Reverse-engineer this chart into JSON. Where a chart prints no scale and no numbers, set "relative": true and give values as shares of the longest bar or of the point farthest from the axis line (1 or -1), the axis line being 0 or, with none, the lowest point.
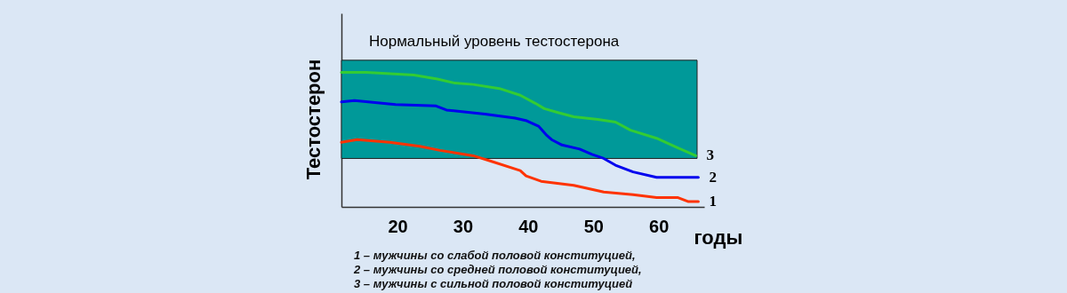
{
  "chart_data": {
    "type": "line",
    "xlabel": "годы",
    "ylabel": "Тестостерон",
    "relative": true,
    "xlim": [
      11.4,
      67
    ],
    "xticks": [
      20,
      30,
      40,
      50,
      60
    ],
    "tick_labels": "x",
    "bands": [
      {
        "axis": "y",
        "from": 0.36,
        "to": 1.09,
        "label": "Нормальный уровень тестостерона",
        "color": "#009999"
      }
    ],
    "series": [
      {
        "name": "1",
        "color": "#ff3300",
        "x": [
          11.4,
          13.8,
          18.8,
          23.4,
          26.5,
          31.6,
          34.3,
          38.8,
          39.7,
          42.0,
          47.0,
          51.6,
          56.1,
          59.7,
          62.9,
          64.5,
          66.1
        ],
        "values": [
          0.48,
          0.5,
          0.48,
          0.45,
          0.42,
          0.38,
          0.34,
          0.27,
          0.23,
          0.19,
          0.16,
          0.11,
          0.09,
          0.07,
          0.07,
          0.04,
          0.04
        ]
      },
      {
        "name": "2",
        "color": "#0000ee",
        "x": [
          11.4,
          13.4,
          19.7,
          25.9,
          27.5,
          33.4,
          38.0,
          39.8,
          41.6,
          42.9,
          43.6,
          45.2,
          47.9,
          49.8,
          51.6,
          53.4,
          56.1,
          59.7,
          62.9,
          66.1
        ],
        "values": [
          0.78,
          0.79,
          0.76,
          0.75,
          0.72,
          0.69,
          0.66,
          0.64,
          0.6,
          0.53,
          0.5,
          0.46,
          0.43,
          0.39,
          0.36,
          0.31,
          0.26,
          0.22,
          0.22,
          0.22
        ]
      },
      {
        "name": "3",
        "color": "#33cc33",
        "x": [
          11.4,
          15.2,
          22.5,
          26.1,
          28.8,
          31.6,
          35.6,
          38.8,
          41.1,
          42.5,
          44.7,
          47.0,
          50.7,
          53.4,
          55.7,
          59.7,
          62.9,
          65.7
        ],
        "values": [
          1.0,
          1.0,
          0.98,
          0.95,
          0.92,
          0.91,
          0.88,
          0.83,
          0.77,
          0.73,
          0.7,
          0.67,
          0.65,
          0.63,
          0.57,
          0.51,
          0.44,
          0.38
        ]
      }
    ],
    "annotations": [
      "1 – мужчины со слабой половой конституцией,",
      "2 – мужчины со средней половой конституцией,",
      "3 – мужчины с сильной половой конституцией"
    ]
  }
}
